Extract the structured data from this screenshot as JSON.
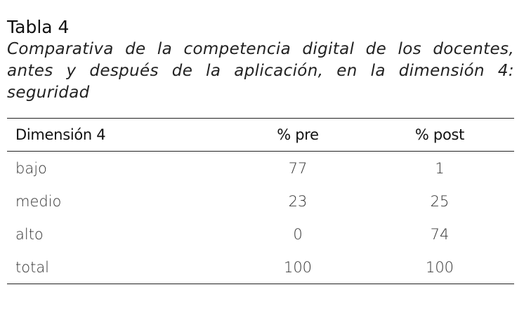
{
  "table_label": "Tabla 4",
  "caption": "Comparativa de la competencia digital de los docentes, antes y después de la aplicación, en la dimensión 4: seguridad",
  "table": {
    "headers": [
      "Dimensión 4",
      "% pre",
      "% post"
    ],
    "rows": [
      [
        "bajo",
        "77",
        "1"
      ],
      [
        "medio",
        "23",
        "25"
      ],
      [
        "alto",
        "0",
        "74"
      ],
      [
        "total",
        "100",
        "100"
      ]
    ]
  }
}
